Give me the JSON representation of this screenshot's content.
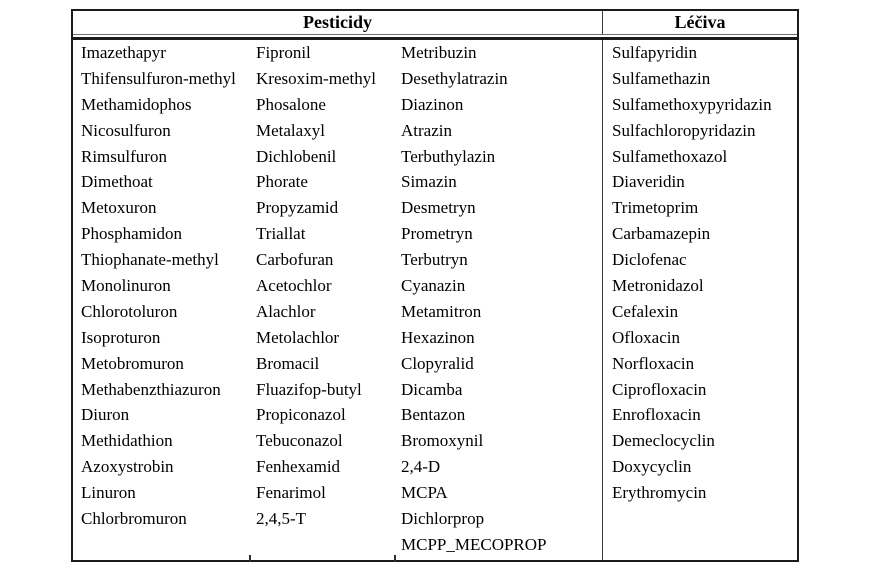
{
  "table": {
    "headers": {
      "pesticides": "Pesticidy",
      "drugs": "Léčiva"
    },
    "pesticides_col1": [
      "Imazethapyr",
      "Thifensulfuron-methyl",
      "Methamidophos",
      "Nicosulfuron",
      "Rimsulfuron",
      "Dimethoat",
      "Metoxuron",
      "Phosphamidon",
      "Thiophanate-methyl",
      "Monolinuron",
      "Chlorotoluron",
      "Isoproturon",
      "Metobromuron",
      "Methabenzthiazuron",
      "Diuron",
      "Methidathion",
      "Azoxystrobin",
      "Linuron",
      "Chlorbromuron"
    ],
    "pesticides_col2": [
      "Fipronil",
      "Kresoxim-methyl",
      "Phosalone",
      "Metalaxyl",
      "Dichlobenil",
      "Phorate",
      "Propyzamid",
      "Triallat",
      "Carbofuran",
      "Acetochlor",
      "Alachlor",
      "Metolachlor",
      "Bromacil",
      "Fluazifop-butyl",
      "Propiconazol",
      "Tebuconazol",
      "Fenhexamid",
      "Fenarimol",
      "2,4,5-T"
    ],
    "pesticides_col3": [
      "Metribuzin",
      "Desethylatrazin",
      "Diazinon",
      "Atrazin",
      "Terbuthylazin",
      "Simazin",
      "Desmetryn",
      "Prometryn",
      "Terbutryn",
      "Cyanazin",
      "Metamitron",
      "Hexazinon",
      "Clopyralid",
      "Dicamba",
      "Bentazon",
      "Bromoxynil",
      "2,4-D",
      "MCPA",
      "Dichlorprop",
      "MCPP_MECOPROP"
    ],
    "drugs_col": [
      "Sulfapyridin",
      "Sulfamethazin",
      "Sulfamethoxypyridazin",
      "Sulfachloropyridazin",
      "Sulfamethoxazol",
      "Diaveridin",
      "Trimetoprim",
      "Carbamazepin",
      "Diclofenac",
      "Metronidazol",
      "Cefalexin",
      "Ofloxacin",
      "Norfloxacin",
      "Ciprofloxacin",
      "Enrofloxacin",
      "Demeclocyclin",
      "Doxycyclin",
      "Erythromycin"
    ],
    "colors": {
      "border_outer": "#1b1b1b",
      "border_inner": "#3a3a3a",
      "text": "#000000",
      "background": "#ffffff"
    }
  }
}
